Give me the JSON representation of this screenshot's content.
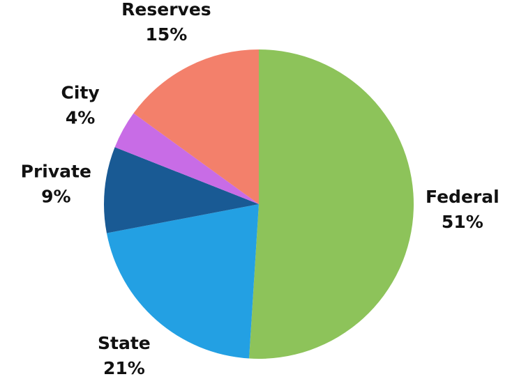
{
  "chart_data": {
    "type": "pie",
    "categories": [
      "Federal",
      "State",
      "Private",
      "City",
      "Reserves"
    ],
    "values": [
      51,
      21,
      9,
      4,
      15
    ],
    "value_labels": [
      "51%",
      "21%",
      "9%",
      "4%",
      "15%"
    ],
    "colors": [
      "#8dc35a",
      "#23a0e3",
      "#195a94",
      "#c86ce6",
      "#f3806b"
    ]
  }
}
